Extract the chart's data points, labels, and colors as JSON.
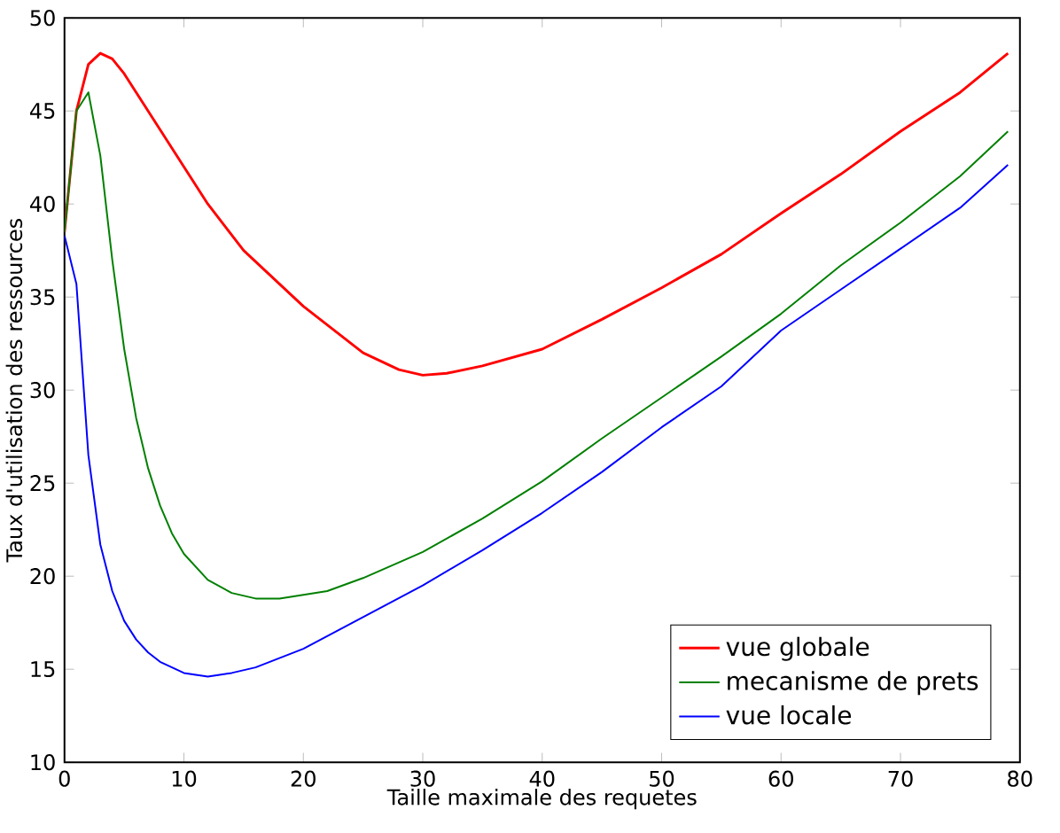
{
  "chart_data": {
    "type": "line",
    "xlabel": "Taille maximale des requetes",
    "ylabel": "Taux d'utilisation des ressources",
    "xlim": [
      0,
      80
    ],
    "ylim": [
      10,
      50
    ],
    "xticks": [
      0,
      10,
      20,
      30,
      40,
      50,
      60,
      70,
      80
    ],
    "yticks": [
      10,
      15,
      20,
      25,
      30,
      35,
      40,
      45,
      50
    ],
    "legend": "bottom right",
    "grid": false,
    "line_style": "solid",
    "marker": "none",
    "series": [
      {
        "name": "vue globale",
        "color": "#ff0000",
        "x": [
          0,
          1,
          2,
          3,
          4,
          5,
          6,
          8,
          10,
          12,
          15,
          20,
          25,
          28,
          30,
          32,
          35,
          40,
          45,
          50,
          55,
          60,
          65,
          70,
          75,
          79
        ],
        "values": [
          38.5,
          45,
          47.5,
          48.1,
          47.8,
          47,
          46,
          44,
          42,
          40,
          37.5,
          34.5,
          32,
          31.1,
          30.8,
          30.9,
          31.3,
          32.2,
          33.8,
          35.5,
          37.3,
          39.5,
          41.6,
          43.9,
          46,
          48.1
        ]
      },
      {
        "name": "mecanisme de prets",
        "color": "#008000",
        "x": [
          0,
          1,
          2,
          3,
          4,
          5,
          6,
          7,
          8,
          9,
          10,
          12,
          14,
          16,
          18,
          20,
          22,
          25,
          30,
          35,
          40,
          45,
          50,
          55,
          60,
          65,
          70,
          75,
          79
        ],
        "values": [
          38.5,
          45,
          46,
          42.6,
          37,
          32.2,
          28.5,
          25.8,
          23.8,
          22.3,
          21.2,
          19.8,
          19.1,
          18.8,
          18.8,
          19,
          19.2,
          19.9,
          21.3,
          23.1,
          25.1,
          27.4,
          29.6,
          31.8,
          34.1,
          36.7,
          39,
          41.5,
          43.9
        ]
      },
      {
        "name": "vue locale",
        "color": "#0000ff",
        "x": [
          0,
          1,
          2,
          3,
          4,
          5,
          6,
          7,
          8,
          10,
          12,
          14,
          16,
          18,
          20,
          25,
          30,
          35,
          40,
          45,
          50,
          55,
          60,
          65,
          70,
          75,
          79
        ],
        "values": [
          38.3,
          35.7,
          26.5,
          21.7,
          19.2,
          17.6,
          16.6,
          15.9,
          15.4,
          14.8,
          14.6,
          14.8,
          15.1,
          15.6,
          16.1,
          17.8,
          19.5,
          21.4,
          23.4,
          25.6,
          28,
          30.2,
          33.2,
          35.4,
          37.6,
          39.8,
          42.1
        ]
      }
    ]
  }
}
